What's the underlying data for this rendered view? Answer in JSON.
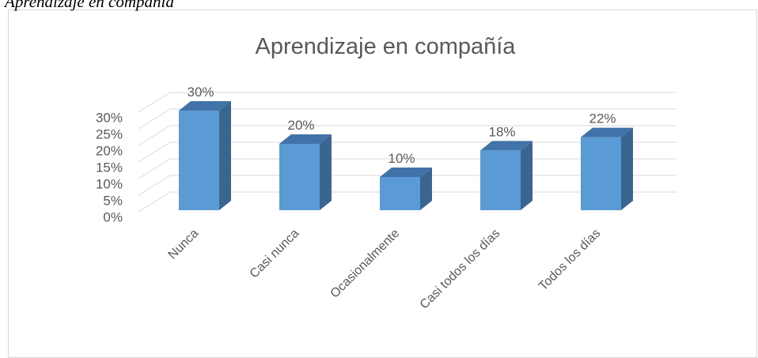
{
  "caption": "Aprendizaje en compañía",
  "chart_data": {
    "type": "bar3d",
    "title": "Aprendizaje en compañía",
    "categories": [
      "Nunca",
      "Casi nunca",
      "Ocasionalmente",
      "Casi todos los días",
      "Todos los días"
    ],
    "values": [
      30,
      20,
      10,
      18,
      22
    ],
    "value_labels": [
      "30%",
      "20%",
      "10%",
      "18%",
      "22%"
    ],
    "color": "#5b9bd5",
    "ylim": [
      0,
      30
    ],
    "yticks": [
      {
        "value": 0,
        "label": "0%"
      },
      {
        "value": 5,
        "label": "5%"
      },
      {
        "value": 10,
        "label": "10%"
      },
      {
        "value": 15,
        "label": "15%"
      },
      {
        "value": 20,
        "label": "20%"
      },
      {
        "value": 25,
        "label": "25%"
      },
      {
        "value": 30,
        "label": "30%"
      }
    ],
    "grid": true
  }
}
